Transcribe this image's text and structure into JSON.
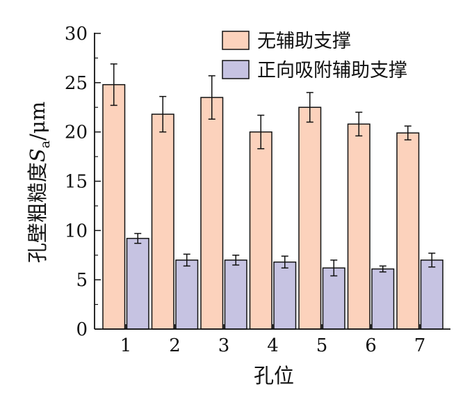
{
  "chart_data": {
    "type": "bar",
    "xlabel": "孔位",
    "ylabel": "孔壁粗糙度",
    "ylabel_symbol": "S",
    "ylabel_subscript": "a",
    "ylabel_unit": "/μm",
    "ylim": [
      0,
      30
    ],
    "yticks": [
      0,
      5,
      10,
      15,
      20,
      25,
      30
    ],
    "categories": [
      "1",
      "2",
      "3",
      "4",
      "5",
      "6",
      "7"
    ],
    "grid": false,
    "legend_position": "top-right",
    "series": [
      {
        "name": "无辅助支撑",
        "color": "#fcd2bc",
        "values": [
          24.8,
          21.8,
          23.5,
          20.0,
          22.5,
          20.8,
          19.9
        ],
        "errors": [
          2.1,
          1.8,
          2.2,
          1.7,
          1.5,
          1.2,
          0.7
        ]
      },
      {
        "name": "正向吸附辅助支撑",
        "color": "#c6c3e2",
        "values": [
          9.2,
          7.0,
          7.0,
          6.8,
          6.2,
          6.1,
          7.0
        ],
        "errors": [
          0.5,
          0.6,
          0.5,
          0.6,
          0.8,
          0.3,
          0.7
        ]
      }
    ]
  }
}
